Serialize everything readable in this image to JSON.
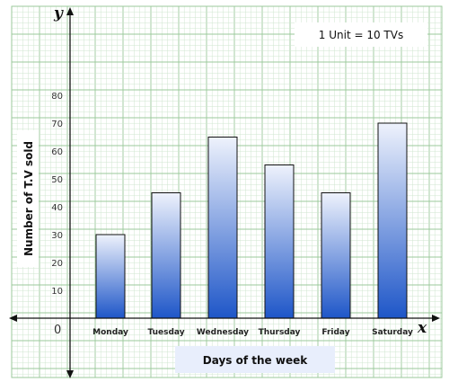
{
  "chart_data": {
    "type": "bar",
    "categories": [
      "Monday",
      "Tuesday",
      "Wednesday",
      "Thursday",
      "Friday",
      "Saturday"
    ],
    "values": [
      30,
      45,
      65,
      55,
      45,
      70
    ],
    "xlabel": "Days of the week",
    "ylabel": "Number of T.V sold",
    "ylim": [
      0,
      80
    ],
    "yticks": [
      10,
      20,
      30,
      40,
      50,
      60,
      70,
      80
    ],
    "origin_label": "0",
    "x_axis_letter": "x",
    "y_axis_letter": "y",
    "annotation": "1 Unit = 10 TVs",
    "grid": true,
    "colors": {
      "grid_minor": "#cfe6cf",
      "grid_major": "#9bc99b",
      "bar_top": "#eef2fc",
      "bar_bottom": "#1e56c8",
      "bar_border": "#111111",
      "label_box": "#e8eefc"
    }
  }
}
